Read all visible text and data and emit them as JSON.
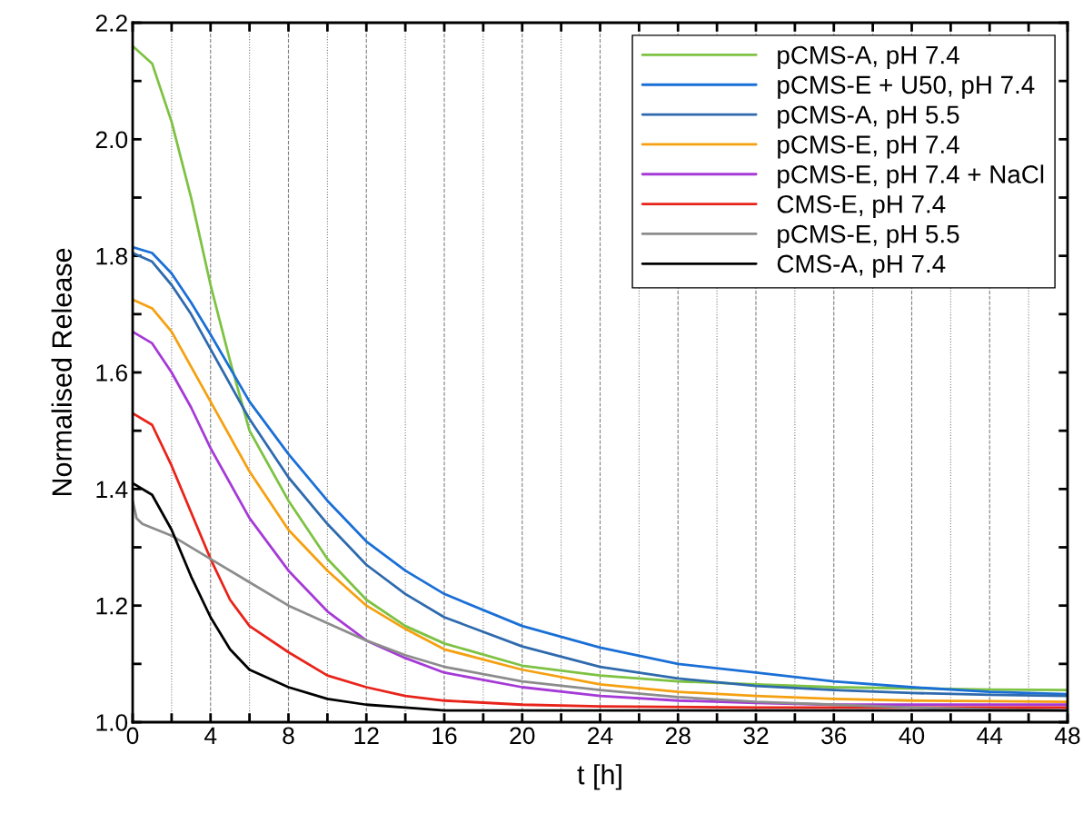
{
  "chart_data": {
    "type": "line",
    "xlabel": "t [h]",
    "ylabel": "Normalised Release",
    "xlim": [
      0,
      48
    ],
    "ylim": [
      1.0,
      2.2
    ],
    "xticks": [
      0,
      {
        "value": 2,
        "label": null
      },
      4,
      {
        "value": 6,
        "label": null
      },
      8,
      {
        "value": 10,
        "label": null
      },
      12,
      {
        "value": 14,
        "label": null
      },
      16,
      {
        "value": 18,
        "label": null
      },
      20,
      {
        "value": 22,
        "label": null
      },
      24,
      {
        "value": 26,
        "label": null
      },
      28,
      {
        "value": 30,
        "label": null
      },
      32,
      {
        "value": 34,
        "label": null
      },
      36,
      {
        "value": 38,
        "label": null
      },
      40,
      {
        "value": 42,
        "label": null
      },
      44,
      {
        "value": 46,
        "label": null
      },
      48
    ],
    "yticks": [
      {
        "value": 1.0,
        "label": "1.0"
      },
      {
        "value": 1.1,
        "label": null
      },
      {
        "value": 1.2,
        "label": "1.2"
      },
      {
        "value": 1.3,
        "label": null
      },
      {
        "value": 1.4,
        "label": "1.4"
      },
      {
        "value": 1.5,
        "label": null
      },
      {
        "value": 1.6,
        "label": "1.6"
      },
      {
        "value": 1.7,
        "label": null
      },
      {
        "value": 1.8,
        "label": "1.8"
      },
      {
        "value": 1.9,
        "label": null
      },
      {
        "value": 2.0,
        "label": "2.0"
      },
      {
        "value": 2.1,
        "label": null
      },
      {
        "value": 2.2,
        "label": "2.2"
      }
    ],
    "grid": "x",
    "legend": "top right",
    "marker": "none",
    "line_style": "solid",
    "series": [
      {
        "name": "pCMS-A, pH 7.4",
        "color": "#7dc242",
        "x": [
          0,
          1,
          2,
          3,
          4,
          5,
          6,
          8,
          10,
          12,
          14,
          16,
          20,
          24,
          28,
          32,
          36,
          40,
          44,
          48
        ],
        "values": [
          2.16,
          2.13,
          2.03,
          1.9,
          1.75,
          1.62,
          1.5,
          1.38,
          1.28,
          1.21,
          1.165,
          1.135,
          1.097,
          1.08,
          1.07,
          1.065,
          1.06,
          1.058,
          1.056,
          1.055
        ]
      },
      {
        "name": "pCMS-E + U50, pH 7.4",
        "color": "#1a6fd6",
        "x": [
          0,
          1,
          2,
          3,
          4,
          6,
          8,
          10,
          12,
          14,
          16,
          20,
          24,
          28,
          32,
          36,
          40,
          44,
          48
        ],
        "values": [
          1.815,
          1.805,
          1.77,
          1.72,
          1.665,
          1.55,
          1.46,
          1.38,
          1.31,
          1.26,
          1.22,
          1.165,
          1.128,
          1.1,
          1.085,
          1.07,
          1.06,
          1.052,
          1.048
        ]
      },
      {
        "name": "pCMS-A, pH 5.5",
        "color": "#2e6aad",
        "x": [
          0,
          1,
          2,
          3,
          4,
          6,
          8,
          10,
          12,
          14,
          16,
          20,
          24,
          28,
          32,
          36,
          40,
          44,
          48
        ],
        "values": [
          1.805,
          1.79,
          1.75,
          1.7,
          1.64,
          1.52,
          1.42,
          1.34,
          1.27,
          1.22,
          1.18,
          1.13,
          1.095,
          1.075,
          1.062,
          1.055,
          1.05,
          1.047,
          1.045
        ]
      },
      {
        "name": "pCMS-E, pH 7.4",
        "color": "#f5a010",
        "x": [
          0,
          1,
          2,
          3,
          4,
          6,
          8,
          10,
          12,
          14,
          16,
          20,
          24,
          28,
          32,
          36,
          40,
          44,
          48
        ],
        "values": [
          1.725,
          1.71,
          1.67,
          1.61,
          1.55,
          1.43,
          1.33,
          1.26,
          1.2,
          1.16,
          1.125,
          1.09,
          1.065,
          1.052,
          1.045,
          1.04,
          1.037,
          1.036,
          1.035
        ]
      },
      {
        "name": "pCMS-E, pH 7.4 + NaCl",
        "color": "#a53ad6",
        "x": [
          0,
          1,
          2,
          3,
          4,
          6,
          8,
          10,
          12,
          14,
          16,
          20,
          24,
          28,
          32,
          36,
          40,
          44,
          48
        ],
        "values": [
          1.67,
          1.65,
          1.6,
          1.54,
          1.47,
          1.35,
          1.26,
          1.19,
          1.14,
          1.11,
          1.085,
          1.06,
          1.045,
          1.037,
          1.033,
          1.03,
          1.03,
          1.03,
          1.03
        ]
      },
      {
        "name": "CMS-E, pH 7.4",
        "color": "#e8231a",
        "x": [
          0,
          1,
          2,
          3,
          4,
          5,
          6,
          8,
          10,
          12,
          14,
          16,
          20,
          24,
          32,
          40,
          48
        ],
        "values": [
          1.53,
          1.51,
          1.44,
          1.36,
          1.28,
          1.21,
          1.165,
          1.12,
          1.08,
          1.06,
          1.045,
          1.037,
          1.03,
          1.027,
          1.025,
          1.025,
          1.025
        ]
      },
      {
        "name": "pCMS-E, pH 5.5",
        "color": "#8c8c8c",
        "x": [
          0,
          0.2,
          0.5,
          2,
          4,
          6,
          8,
          10,
          12,
          14,
          16,
          20,
          24,
          28,
          32,
          36,
          40,
          44,
          48
        ],
        "values": [
          1.38,
          1.35,
          1.34,
          1.32,
          1.28,
          1.24,
          1.2,
          1.17,
          1.14,
          1.115,
          1.095,
          1.07,
          1.055,
          1.043,
          1.035,
          1.03,
          1.025,
          1.022,
          1.02
        ]
      },
      {
        "name": "CMS-A, pH 7.4",
        "color": "#000000",
        "x": [
          0,
          1,
          2,
          3,
          4,
          5,
          6,
          8,
          10,
          12,
          14,
          16,
          20,
          48
        ],
        "values": [
          1.41,
          1.39,
          1.33,
          1.25,
          1.18,
          1.125,
          1.09,
          1.06,
          1.04,
          1.03,
          1.025,
          1.02,
          1.02,
          1.02
        ]
      }
    ]
  }
}
